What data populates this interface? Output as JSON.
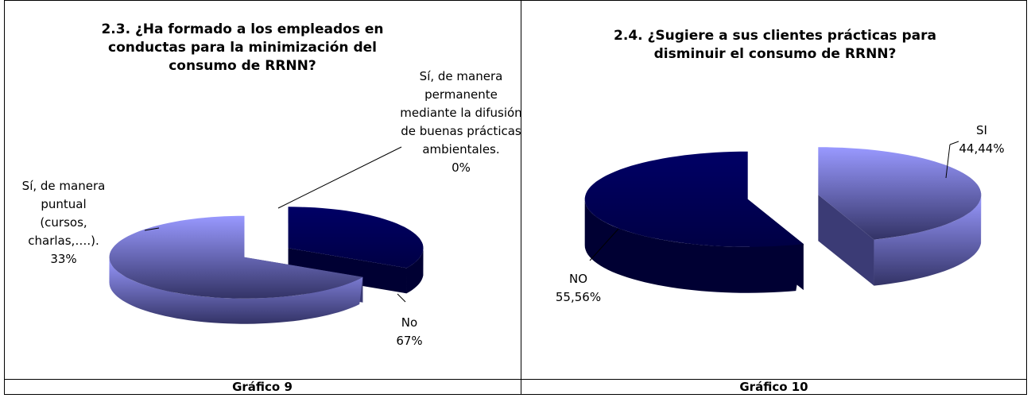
{
  "chart_data": [
    {
      "type": "pie3d",
      "title": "2.3. ¿Ha formado a los empleados en conductas para la minimización del consumo de RRNN?",
      "categories": [
        "Sí, de manera puntual (cursos, charlas,….).",
        "No",
        "Sí, de manera permanente mediante la difusión de buenas prácticas ambientales."
      ],
      "values": [
        33,
        67,
        0
      ],
      "value_labels": [
        "33%",
        "67%",
        "0%"
      ],
      "colors": [
        "#000066",
        "#9999ff",
        "#6666cc"
      ]
    },
    {
      "type": "pie3d",
      "title": "2.4. ¿Sugiere a sus clientes prácticas para disminuir el consumo de RRNN?",
      "categories": [
        "SI",
        "NO"
      ],
      "values": [
        44.44,
        55.56
      ],
      "value_labels": [
        "44,44%",
        "55,56%"
      ],
      "colors": [
        "#9999ff",
        "#000066"
      ]
    }
  ],
  "captions": [
    "Gráfico 9",
    "Gráfico 10"
  ]
}
